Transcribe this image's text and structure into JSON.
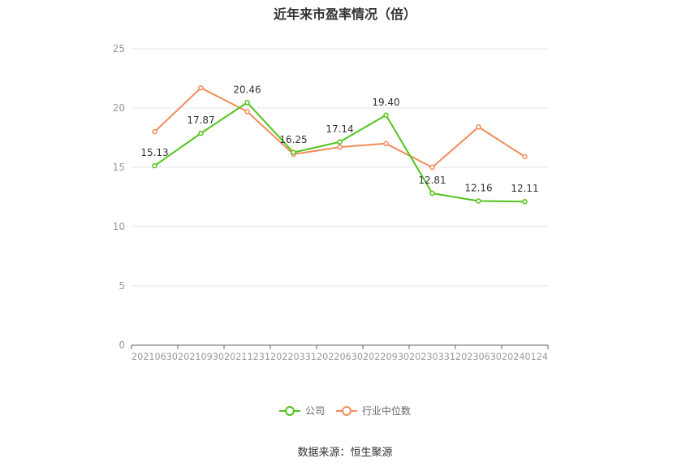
{
  "chart_data": {
    "type": "line",
    "title": "近年来市盈率情况（倍）",
    "categories": [
      "20210630",
      "20210930",
      "20211231",
      "20220331",
      "20220630",
      "20220930",
      "20230331",
      "20230630",
      "20240124"
    ],
    "series": [
      {
        "name": "公司",
        "color": "#52c41a",
        "values": [
          15.13,
          17.87,
          20.46,
          16.25,
          17.14,
          19.4,
          12.81,
          12.16,
          12.11
        ],
        "labels": [
          "15.13",
          "17.87",
          "20.46",
          "16.25",
          "17.14",
          "19.40",
          "12.81",
          "12.16",
          "12.11"
        ]
      },
      {
        "name": "行业中位数",
        "color": "#f08c5a",
        "values": [
          18.0,
          21.7,
          19.7,
          16.1,
          16.7,
          17.0,
          15.0,
          18.4,
          15.9
        ]
      }
    ],
    "yticks": [
      "0",
      "5",
      "10",
      "15",
      "20",
      "25"
    ],
    "ylim": [
      0,
      25
    ],
    "grid": true,
    "legend_position": "bottom-center"
  },
  "footer": {
    "source": "数据来源：恒生聚源"
  }
}
